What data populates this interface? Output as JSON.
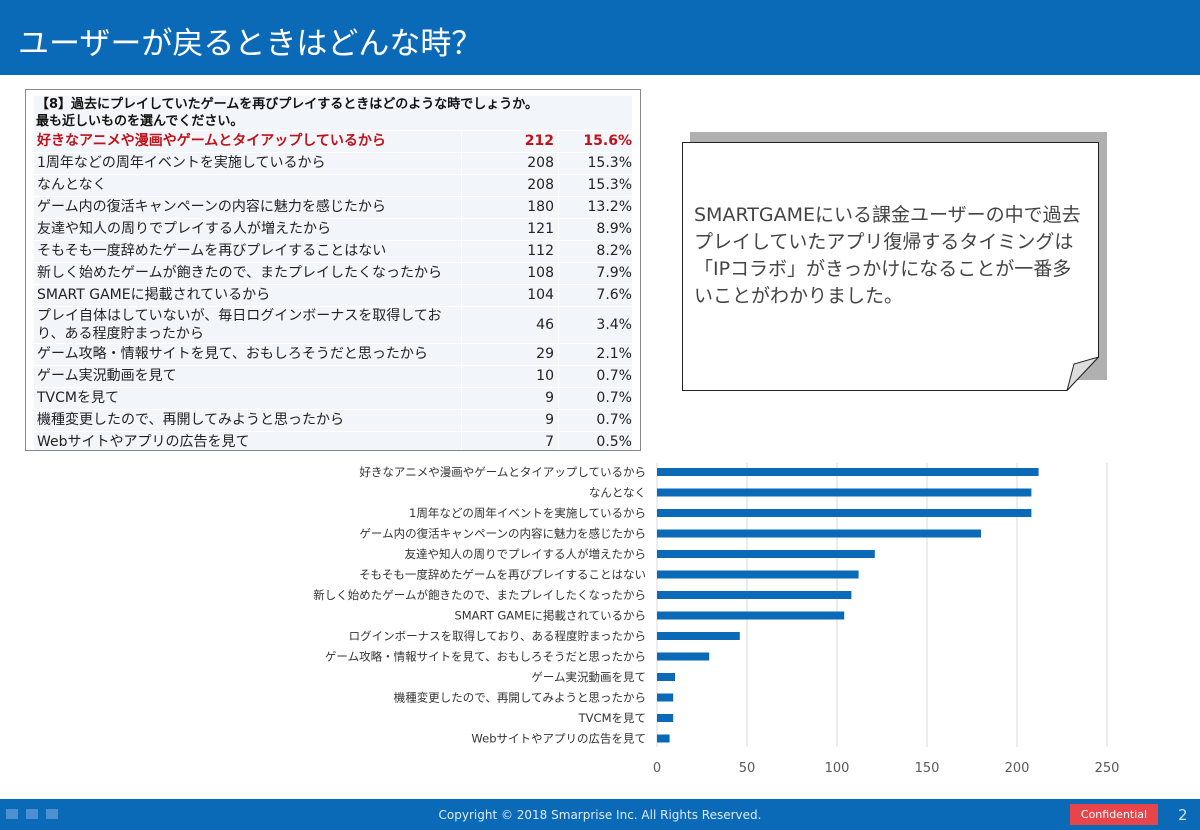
{
  "title": "ユーザーが戻るときはどんな時？",
  "table": {
    "question": "【8】過去にプレイしていたゲームを再びプレイするときはどのような時でしょうか。",
    "question2": "最も近しいものを選んでください。",
    "rows": [
      {
        "label": "好きなアニメや漫画やゲームとタイアップしているから",
        "count": "212",
        "pct": "15.6%"
      },
      {
        "label": "1周年などの周年イベントを実施しているから",
        "count": "208",
        "pct": "15.3%"
      },
      {
        "label": "なんとなく",
        "count": "208",
        "pct": "15.3%"
      },
      {
        "label": "ゲーム内の復活キャンペーンの内容に魅力を感じたから",
        "count": "180",
        "pct": "13.2%"
      },
      {
        "label": "友達や知人の周りでプレイする人が増えたから",
        "count": "121",
        "pct": "8.9%"
      },
      {
        "label": "そもそも一度辞めたゲームを再びプレイすることはない",
        "count": "112",
        "pct": "8.2%"
      },
      {
        "label": "新しく始めたゲームが飽きたので、またプレイしたくなったから",
        "count": "108",
        "pct": "7.9%"
      },
      {
        "label": "SMART GAMEに掲載されているから",
        "count": "104",
        "pct": "7.6%"
      },
      {
        "label": "プレイ自体はしていないが、毎日ログインボーナスを取得しており、ある程度貯まったから",
        "count": "46",
        "pct": "3.4%"
      },
      {
        "label": "ゲーム攻略・情報サイトを見て、おもしろそうだと思ったから",
        "count": "29",
        "pct": "2.1%"
      },
      {
        "label": "ゲーム実況動画を見て",
        "count": "10",
        "pct": "0.7%"
      },
      {
        "label": "TVCMを見て",
        "count": "9",
        "pct": "0.7%"
      },
      {
        "label": "機種変更したので、再開してみようと思ったから",
        "count": "9",
        "pct": "0.7%"
      },
      {
        "label": "Webサイトやアプリの広告を見て",
        "count": "7",
        "pct": "0.5%"
      }
    ]
  },
  "callout": "SMARTGAMEにいる課金ユーザーの中で過去プレイしていたアプリ復帰するタイミングは「IPコラボ」がきっかけになることが一番多いことがわかりました。",
  "chart_data": {
    "type": "bar",
    "orientation": "horizontal",
    "categories": [
      "好きなアニメや漫画やゲームとタイアップしているから",
      "なんとなく",
      "1周年などの周年イベントを実施しているから",
      "ゲーム内の復活キャンペーンの内容に魅力を感じたから",
      "友達や知人の周りでプレイする人が増えたから",
      "そもそも一度辞めたゲームを再びプレイすることはない",
      "新しく始めたゲームが飽きたので、またプレイしたくなったから",
      "SMART GAMEに掲載されているから",
      "ログインボーナスを取得しており、ある程度貯まったから",
      "ゲーム攻略・情報サイトを見て、おもしろそうだと思ったから",
      "ゲーム実況動画を見て",
      "機種変更したので、再開してみようと思ったから",
      "TVCMを見て",
      "Webサイトやアプリの広告を見て"
    ],
    "values": [
      212,
      208,
      208,
      180,
      121,
      112,
      108,
      104,
      46,
      29,
      10,
      9,
      9,
      7
    ],
    "xlim": [
      0,
      250
    ],
    "ticks": [
      "0",
      "50",
      "100",
      "150",
      "200",
      "250"
    ],
    "grid": true,
    "color": "#0a6ab8"
  },
  "footer": {
    "copyright": "Copyright © 2018 Smarprise Inc. All Rights Reserved.",
    "confidential": "Confidential",
    "page": "2"
  }
}
